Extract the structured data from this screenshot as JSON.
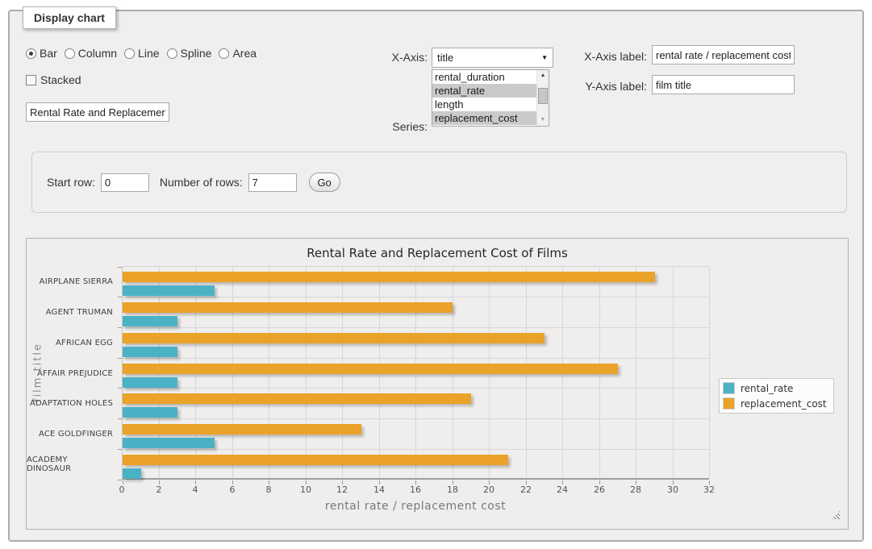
{
  "panel": {
    "legend": "Display chart"
  },
  "icons": {
    "select_arrow": "▼",
    "scroll_up": "▲",
    "scroll_down": "▼"
  },
  "controls": {
    "chart_types": [
      {
        "label": "Bar",
        "selected": true
      },
      {
        "label": "Column",
        "selected": false
      },
      {
        "label": "Line",
        "selected": false
      },
      {
        "label": "Spline",
        "selected": false
      },
      {
        "label": "Area",
        "selected": false
      }
    ],
    "stacked_label": "Stacked",
    "stacked_checked": false,
    "title_input_value": "Rental Rate and Replacement Cost of Films",
    "xaxis_label_text": "X-Axis:",
    "xaxis_select_value": "title",
    "series_label_text": "Series:",
    "series_options": [
      {
        "label": "rental_duration",
        "selected": false
      },
      {
        "label": "rental_rate",
        "selected": true
      },
      {
        "label": "length",
        "selected": false
      },
      {
        "label": "replacement_cost",
        "selected": true
      }
    ],
    "xaxis_label_field": {
      "label": "X-Axis label:",
      "value": "rental rate / replacement cost"
    },
    "yaxis_label_field": {
      "label": "Y-Axis label:",
      "value": "film title"
    }
  },
  "pager": {
    "start_row_label": "Start row:",
    "start_row_value": "0",
    "num_rows_label": "Number of rows:",
    "num_rows_value": "7",
    "go_label": "Go"
  },
  "chart_data": {
    "type": "bar",
    "orientation": "horizontal",
    "title": "Rental Rate and Replacement Cost of Films",
    "xlabel": "rental rate / replacement cost",
    "ylabel": "film title",
    "xlim": [
      0,
      32
    ],
    "xticks": [
      0,
      2,
      4,
      6,
      8,
      10,
      12,
      14,
      16,
      18,
      20,
      22,
      24,
      26,
      28,
      30,
      32
    ],
    "grid": true,
    "legend_position": "right",
    "categories_top_to_bottom": [
      "AIRPLANE SIERRA",
      "AGENT TRUMAN",
      "AFRICAN EGG",
      "AFFAIR PREJUDICE",
      "ADAPTATION HOLES",
      "ACE GOLDFINGER",
      "ACADEMY DINOSAUR"
    ],
    "series": [
      {
        "name": "rental_rate",
        "color": "#4bb2c5",
        "values": [
          4.99,
          2.99,
          2.99,
          2.99,
          2.99,
          4.99,
          0.99
        ]
      },
      {
        "name": "replacement_cost",
        "color": "#eaa228",
        "values": [
          28.99,
          17.99,
          22.99,
          26.99,
          18.99,
          12.99,
          20.99
        ]
      }
    ],
    "group_bar_order_top_to_bottom": [
      "replacement_cost",
      "rental_rate"
    ]
  }
}
